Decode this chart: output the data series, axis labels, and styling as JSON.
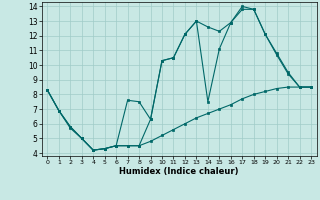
{
  "xlabel": "Humidex (Indice chaleur)",
  "xlim": [
    -0.5,
    23.5
  ],
  "ylim": [
    3.8,
    14.3
  ],
  "yticks": [
    4,
    5,
    6,
    7,
    8,
    9,
    10,
    11,
    12,
    13,
    14
  ],
  "xticks": [
    0,
    1,
    2,
    3,
    4,
    5,
    6,
    7,
    8,
    9,
    10,
    11,
    12,
    13,
    14,
    15,
    16,
    17,
    18,
    19,
    20,
    21,
    22,
    23
  ],
  "bg_color": "#c8e8e4",
  "grid_color": "#a0ccc8",
  "line_color": "#006868",
  "line1_x": [
    0,
    1,
    2,
    3,
    4,
    5,
    6,
    7,
    8,
    9,
    10,
    11,
    12,
    13,
    14,
    15,
    16,
    17,
    18,
    19,
    20,
    21,
    22,
    23
  ],
  "line1_y": [
    8.3,
    6.9,
    5.8,
    5.0,
    4.2,
    4.3,
    4.5,
    4.5,
    4.5,
    6.3,
    10.3,
    10.5,
    12.1,
    13.0,
    12.6,
    12.3,
    12.9,
    14.0,
    13.8,
    12.1,
    10.8,
    9.5,
    8.5,
    8.5
  ],
  "line2_x": [
    0,
    1,
    2,
    3,
    4,
    5,
    6,
    7,
    8,
    9,
    10,
    11,
    12,
    13,
    14,
    15,
    16,
    17,
    18,
    19,
    20,
    21,
    22,
    23
  ],
  "line2_y": [
    8.3,
    6.9,
    5.8,
    5.0,
    4.2,
    4.3,
    4.5,
    7.6,
    7.5,
    6.3,
    10.3,
    10.5,
    12.1,
    13.0,
    7.5,
    11.1,
    12.9,
    13.8,
    13.8,
    12.1,
    10.7,
    9.4,
    8.5,
    8.5
  ],
  "line3_x": [
    0,
    1,
    2,
    3,
    4,
    5,
    6,
    7,
    8,
    9,
    10,
    11,
    12,
    13,
    14,
    15,
    16,
    17,
    18,
    19,
    20,
    21,
    22,
    23
  ],
  "line3_y": [
    8.3,
    6.9,
    5.7,
    5.0,
    4.2,
    4.3,
    4.5,
    4.5,
    4.5,
    4.8,
    5.2,
    5.6,
    6.0,
    6.4,
    6.7,
    7.0,
    7.3,
    7.7,
    8.0,
    8.2,
    8.4,
    8.5,
    8.5,
    8.5
  ]
}
